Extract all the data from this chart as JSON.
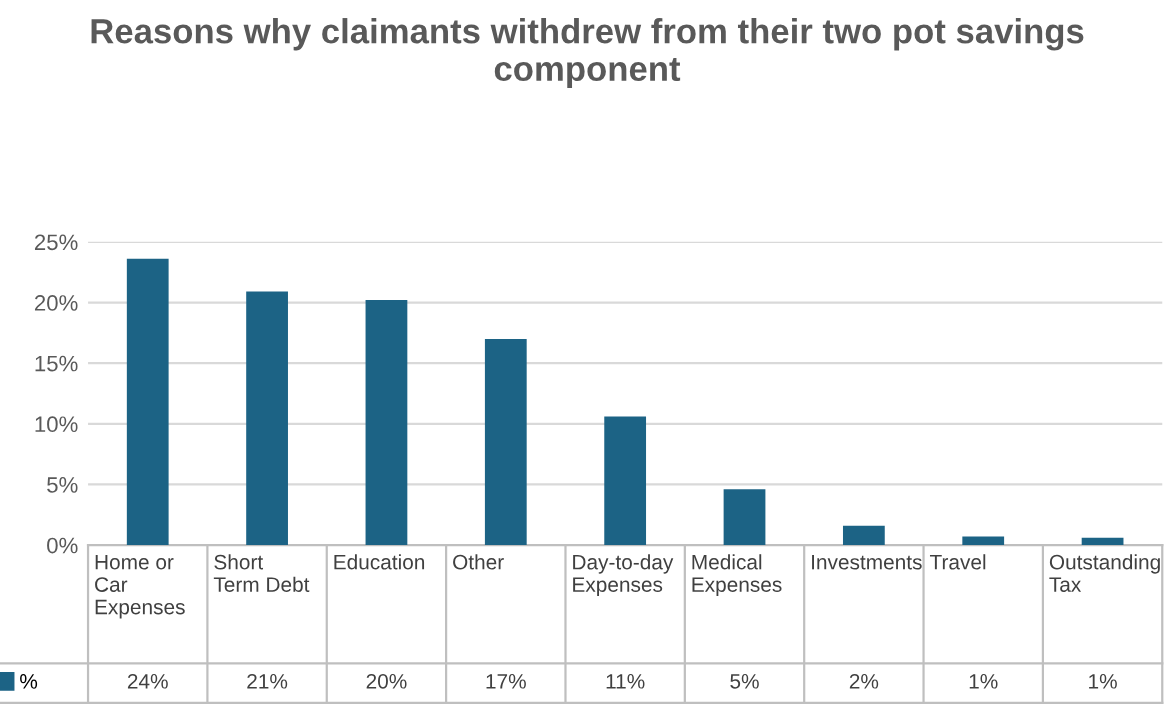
{
  "chart_data": {
    "type": "bar",
    "title": "Reasons why claimants withdrew from their two pot savings component",
    "categories": [
      "Home or Car Expenses",
      "Short Term Debt",
      "Education",
      "Other",
      "Day-to-day Expenses",
      "Medical Expenses",
      "Investments",
      "Travel",
      "Outstanding Tax"
    ],
    "series": [
      {
        "name": "%",
        "color": "#1c6385",
        "values": [
          23.6,
          20.9,
          20.2,
          17.0,
          10.6,
          4.6,
          1.6,
          0.7,
          0.6
        ],
        "value_labels": [
          "24%",
          "21%",
          "20%",
          "17%",
          "11%",
          "5%",
          "2%",
          "1%",
          "1%"
        ]
      }
    ],
    "ylim": [
      0,
      25
    ],
    "yticks": [
      {
        "value": 0,
        "label": "0%"
      },
      {
        "value": 5,
        "label": "5%"
      },
      {
        "value": 10,
        "label": "10%"
      },
      {
        "value": 15,
        "label": "15%"
      },
      {
        "value": 20,
        "label": "20%"
      },
      {
        "value": 25,
        "label": "25%"
      }
    ],
    "grid": "y",
    "legend": "bottom"
  }
}
